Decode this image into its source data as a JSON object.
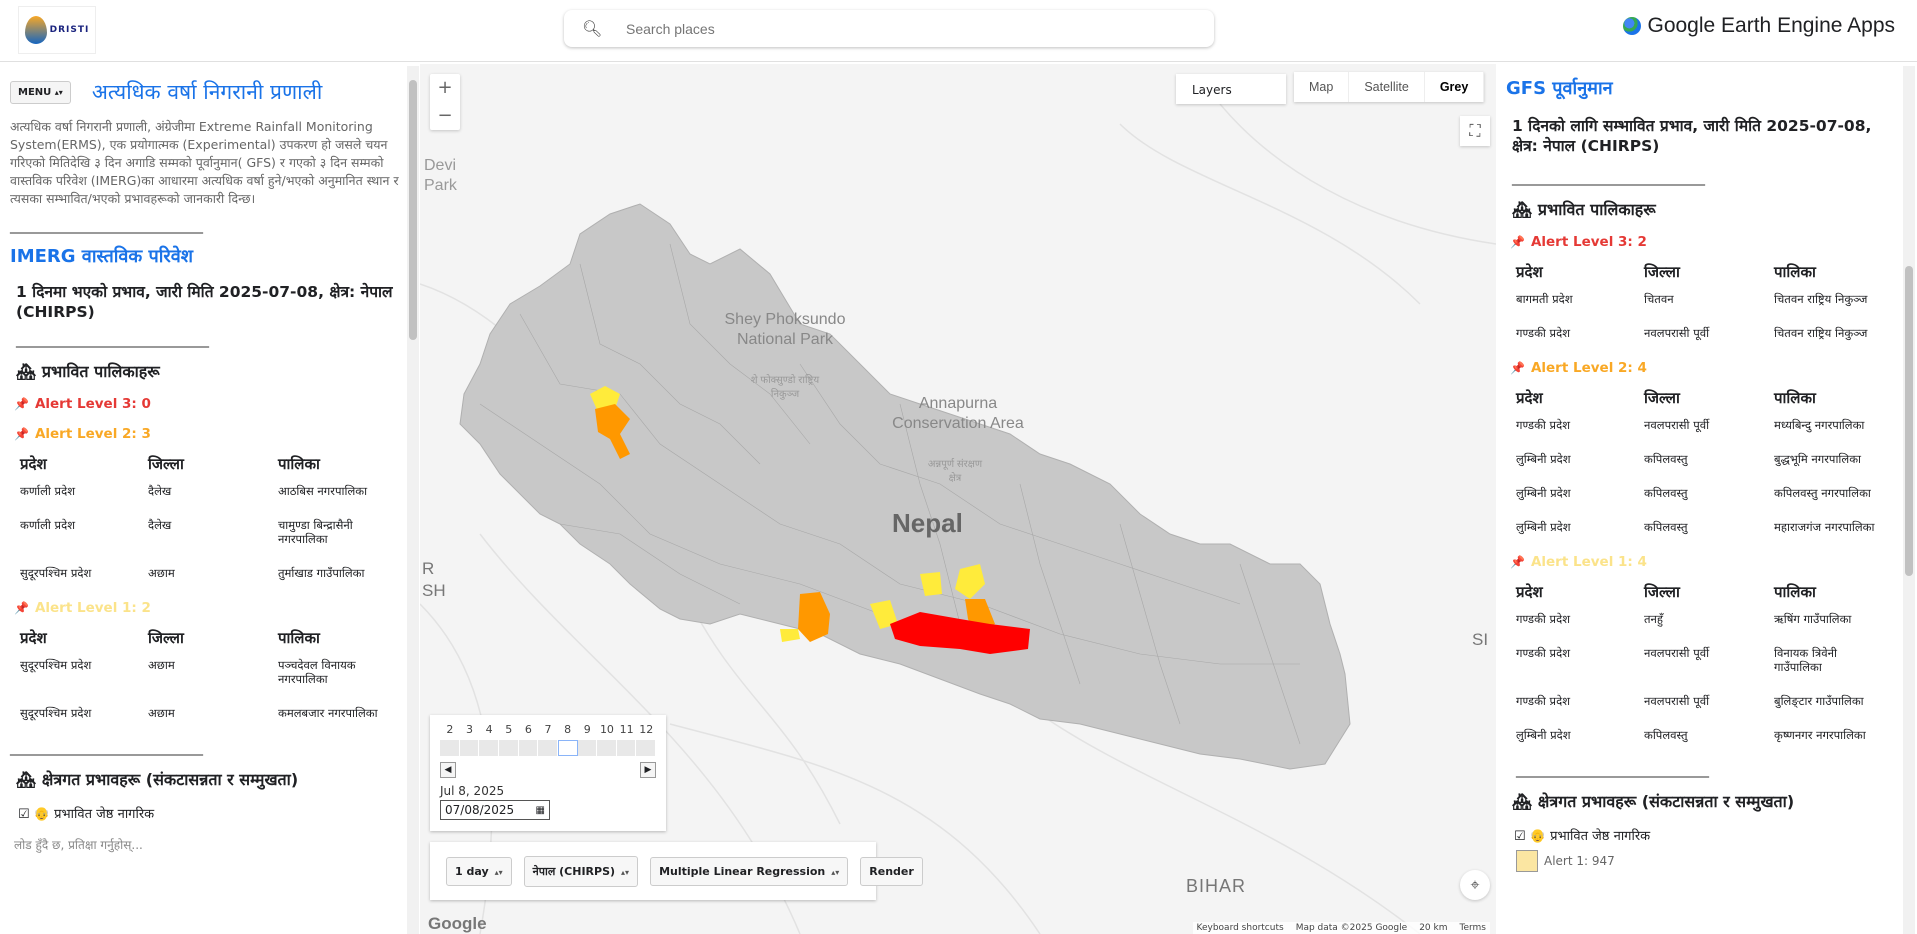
{
  "topbar": {
    "logo_text": "DRISTI",
    "search_placeholder": "Search places",
    "gee_title": "Google Earth Engine Apps"
  },
  "left": {
    "menu_label": "MENU",
    "title": "अत्यधिक वर्षा निगरानी प्रणाली",
    "description": "अत्यधिक वर्षा निगरानी प्रणाली, अंग्रेजीमा Extreme Rainfall Monitoring System(ERMS), एक प्रयोगात्मक (Experimental) उपकरण हो जसले चयन गरिएको मितिदेखि ३ दिन अगाडि सम्मको पूर्वानुमान( GFS) र गएको ३ दिन सम्मको वास्तविक परिवेश (IMERG)का आधारमा अत्यधिक वर्षा हुने/भएको अनुमानित स्थान र त्यसका सम्भावित/भएको प्रभावहरूको जानकारी दिन्छ।",
    "rule": "________________________________",
    "section_title": "IMERG वास्तविक परिवेश",
    "subtitle": "1 दिनमा भएको प्रभाव, जारी मिति 2025-07-08, क्षेत्र: नेपाल (CHIRPS)",
    "affected_heading": "प्रभावित पालिकाहरू",
    "alert3": "Alert Level 3: 0",
    "alert2": "Alert Level 2: 3",
    "alert1": "Alert Level 1: 2",
    "col_province": "प्रदेश",
    "col_district": "जिल्ला",
    "col_palika": "पालिका",
    "level2_rows": [
      [
        "कर्णाली प्रदेश",
        "दैलेख",
        "आठबिस नगरपालिका"
      ],
      [
        "कर्णाली प्रदेश",
        "दैलेख",
        "चामुण्डा बिन्द्रासैनी नगरपालिका"
      ],
      [
        "सुदूरपश्चिम प्रदेश",
        "अछाम",
        "तुर्माखाड गाउँपालिका"
      ]
    ],
    "level1_rows": [
      [
        "सुदूरपश्चिम प्रदेश",
        "अछाम",
        "पञ्चदेवल विनायक नगरपालिका"
      ],
      [
        "सुदूरपश्चिम प्रदेश",
        "अछाम",
        "कमलबजार नगरपालिका"
      ]
    ],
    "area_heading": "क्षेत्रगत प्रभावहरू (संकटासन्नता र सम्मुखता)",
    "elderly_label": "प्रभावित जेष्ठ नागरिक",
    "loading": "लोड हुँदै छ, प्रतिक्षा गर्नुहोस्..."
  },
  "map": {
    "layers_label": "Layers",
    "type_map": "Map",
    "type_satellite": "Satellite",
    "type_grey": "Grey",
    "labels": {
      "devi_park": "Devi Park",
      "shey": "Shey Phoksundo National Park",
      "shey_np": "शे फोक्सुण्डो राष्ट्रिय निकुञ्ज",
      "annapurna": "Annapurna Conservation Area",
      "annapurna_np": "अन्नपूर्ण संरक्षण क्षेत्र",
      "nepal": "Nepal",
      "bihar": "BIHAR",
      "r_sh": "R SH",
      "si": "SI"
    },
    "attribution": [
      "Keyboard shortcuts",
      "Map data ©2025 Google",
      "20 km",
      "Terms"
    ],
    "google_logo": "Google"
  },
  "slider": {
    "ticks": [
      "2",
      "3",
      "4",
      "5",
      "6",
      "7",
      "8",
      "9",
      "10",
      "11",
      "12"
    ],
    "selected_index": 6,
    "date_label": "Jul 8, 2025",
    "date_value": "07/08/2025"
  },
  "controls": {
    "duration": "1 day",
    "region": "नेपाल (CHIRPS)",
    "model": "Multiple Linear Regression",
    "render": "Render"
  },
  "right": {
    "section_title": "GFS पूर्वानुमान",
    "subtitle": "1 दिनको लागि सम्भावित प्रभाव, जारी मिति 2025-07-08, क्षेत्र: नेपाल (CHIRPS)",
    "rule": "________________________________",
    "affected_heading": "प्रभावित पालिकाहरू",
    "alert3": "Alert Level 3: 2",
    "alert2": "Alert Level 2: 4",
    "alert1": "Alert Level 1: 4",
    "col_province": "प्रदेश",
    "col_district": "जिल्ला",
    "col_palika": "पालिका",
    "level3_rows": [
      [
        "बागमती प्रदेश",
        "चितवन",
        "चितवन राष्ट्रिय निकुञ्ज"
      ],
      [
        "गण्डकी प्रदेश",
        "नवलपरासी पूर्वी",
        "चितवन राष्ट्रिय निकुञ्ज"
      ]
    ],
    "level2_rows": [
      [
        "गण्डकी प्रदेश",
        "नवलपरासी पूर्वी",
        "मध्यबिन्दु नगरपालिका"
      ],
      [
        "लुम्बिनी प्रदेश",
        "कपिलवस्तु",
        "बुद्धभूमि नगरपालिका"
      ],
      [
        "लुम्बिनी प्रदेश",
        "कपिलवस्तु",
        "कपिलवस्तु नगरपालिका"
      ],
      [
        "लुम्बिनी प्रदेश",
        "कपिलवस्तु",
        "महाराजगंज नगरपालिका"
      ]
    ],
    "level1_rows": [
      [
        "गण्डकी प्रदेश",
        "तनहुँ",
        "ऋषिंग गाउँपालिका"
      ],
      [
        "गण्डकी प्रदेश",
        "नवलपरासी पूर्वी",
        "विनायक त्रिवेनी गाउँपालिका"
      ],
      [
        "गण्डकी प्रदेश",
        "नवलपरासी पूर्वी",
        "बुलिङ्टार गाउँपालिका"
      ],
      [
        "लुम्बिनी प्रदेश",
        "कपिलवस्तु",
        "कृष्णनगर नगरपालिका"
      ]
    ],
    "area_heading": "क्षेत्रगत प्रभावहरू (संकटासन्नता र सम्मुखता)",
    "elderly_label": "प्रभावित जेष्ठ नागरिक",
    "legend_alert1": "Alert 1: 947"
  },
  "colors": {
    "accent": "#1a73e8",
    "alert3": "#e53935",
    "alert2": "#f9a825",
    "alert1": "#fbe38a",
    "country_fill": "#c8c8c8",
    "polygon_red": "#ff0000",
    "polygon_orange": "#ff9800",
    "polygon_yellow": "#ffeb3b"
  }
}
